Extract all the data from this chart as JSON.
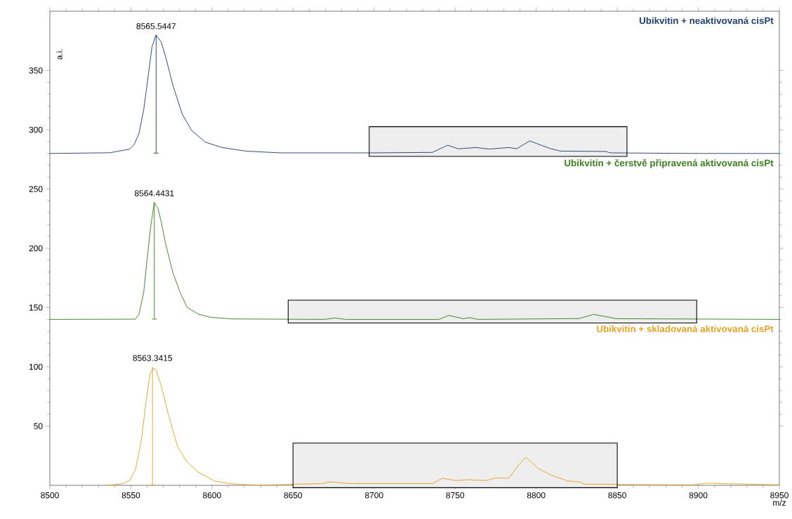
{
  "chart_data": {
    "type": "line",
    "xlabel": "m/z",
    "ylabel": "a.i.",
    "xlim": [
      8500,
      8950
    ],
    "ylim": [
      0,
      400
    ],
    "xticks": [
      8500,
      8550,
      8600,
      8650,
      8700,
      8750,
      8800,
      8850,
      8900,
      8950
    ],
    "yticks": [
      50,
      100,
      150,
      200,
      250,
      300,
      350
    ],
    "series": [
      {
        "name": "Ubikvitin + neaktivovaná cisPt",
        "color": "#1f3f6e",
        "x": [
          8500,
          8537,
          8549.2,
          8552,
          8555,
          8557.9,
          8560.8,
          8563,
          8565.5,
          8568.7,
          8571.6,
          8576,
          8581.7,
          8587.5,
          8596,
          8606,
          8620.7,
          8642,
          8700,
          8736,
          8745.4,
          8752,
          8763,
          8771,
          8783,
          8788,
          8796,
          8803,
          8809,
          8815,
          8843,
          8845.6,
          8900,
          8950
        ],
        "values": [
          280,
          280.6,
          283.6,
          287.5,
          297,
          317,
          346.7,
          370,
          380,
          374,
          360.6,
          337,
          313,
          299.3,
          289.5,
          285.1,
          282,
          280.5,
          280.5,
          280.9,
          287,
          283.9,
          285,
          283.7,
          285,
          284,
          290.6,
          287,
          284,
          282,
          281.7,
          280.5,
          280,
          280
        ]
      },
      {
        "name": "Ubikvitin + čerstvě připravená aktivovaná cisPt",
        "color": "#3a7f1e",
        "x": [
          8500,
          8552.8,
          8555,
          8557.9,
          8560,
          8562.2,
          8564.4,
          8566.6,
          8568.7,
          8571.6,
          8576,
          8580.3,
          8584.6,
          8591.8,
          8599,
          8612,
          8669.5,
          8675.6,
          8682.6,
          8739.9,
          8746,
          8755,
          8759,
          8764,
          8826.4,
          8835.5,
          8849.5,
          8950
        ],
        "values": [
          140,
          140.2,
          144.3,
          163,
          190.8,
          218.4,
          238.5,
          234,
          222.3,
          202.6,
          179,
          163,
          150.3,
          144.3,
          141.8,
          140.4,
          140,
          141.2,
          140,
          140,
          143.4,
          140.6,
          141.5,
          140,
          140.7,
          144.2,
          140.6,
          140
        ]
      },
      {
        "name": "Ubikvitin + skladovaná aktivovaná cisPt",
        "color": "#e8a020",
        "x": [
          8535,
          8544.2,
          8549.2,
          8552.8,
          8556.5,
          8559.3,
          8561.8,
          8563.6,
          8565.5,
          8568.7,
          8573,
          8578.8,
          8584.6,
          8591.8,
          8601.9,
          8613.5,
          8628,
          8668.4,
          8672.5,
          8684.6,
          8736,
          8742,
          8751,
          8758,
          8769,
          8775,
          8783,
          8789,
          8793.6,
          8801.3,
          8809.3,
          8819.4,
          8827.4,
          8829.4,
          8895.8,
          8905.8,
          8915.8,
          8950
        ],
        "values": [
          0,
          1.2,
          4.1,
          13,
          38.7,
          70,
          93.8,
          98.9,
          97.4,
          84,
          60.4,
          32.6,
          19.8,
          10.9,
          3.4,
          1.2,
          0.2,
          1.5,
          3,
          1.5,
          1.5,
          5.9,
          4,
          4.8,
          4,
          6.3,
          6,
          16.8,
          23.7,
          14.1,
          8.6,
          3.7,
          2.7,
          1,
          0.4,
          1.9,
          1.4,
          0.5
        ]
      }
    ],
    "annotations": [
      {
        "text": "8565.5447",
        "x": 8565.5447,
        "y": 380
      },
      {
        "text": "8564.4431",
        "x": 8564.4431,
        "y": 239
      },
      {
        "text": "8563.3415",
        "x": 8563.3415,
        "y": 100
      }
    ],
    "bands": [
      {
        "axis": "x",
        "from": 8697,
        "to": 8856,
        "color": "#eeeeee"
      },
      {
        "axis": "x",
        "from": 8647,
        "to": 8899,
        "color": "#eeeeee"
      },
      {
        "axis": "x",
        "from": 8650,
        "to": 8850,
        "color": "#eeeeee"
      }
    ]
  }
}
